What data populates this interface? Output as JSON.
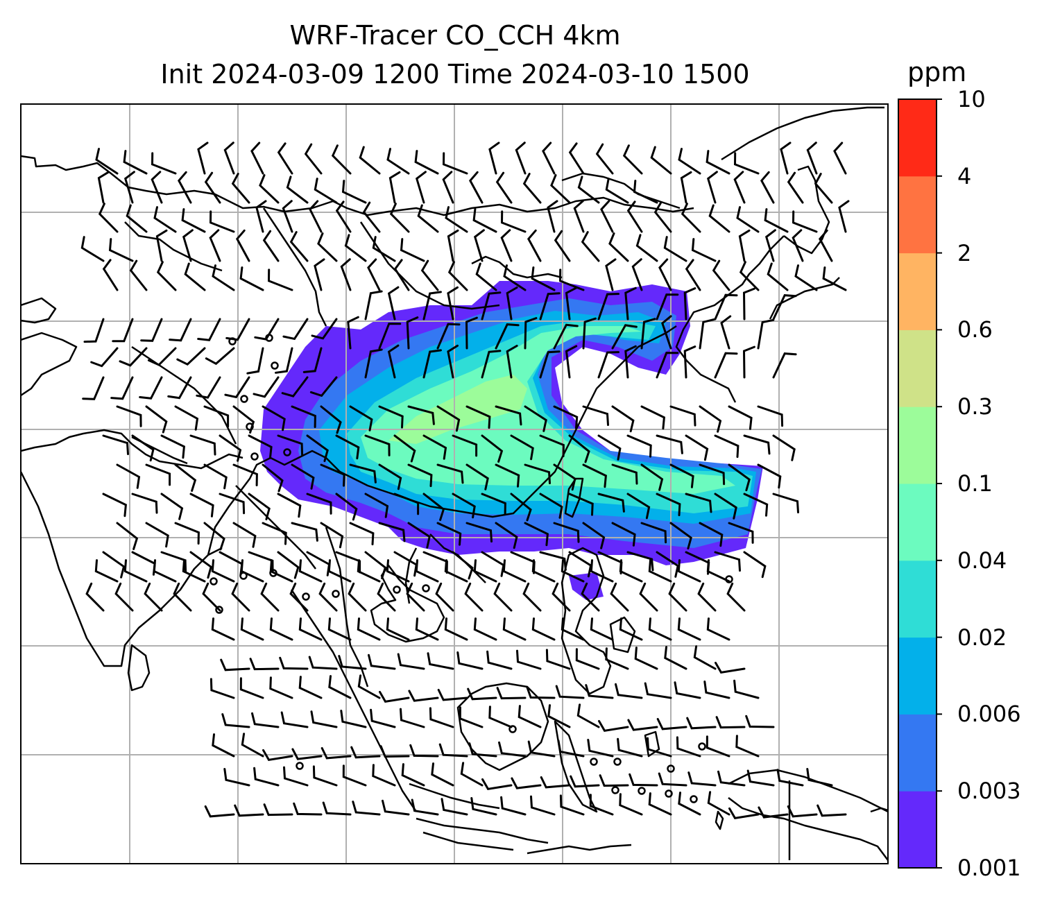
{
  "title": {
    "line1": "WRF-Tracer CO_CCH 4km",
    "line2": "Init 2024-03-09 1200 Time 2024-03-10 1500"
  },
  "colorbar": {
    "unit": "ppm",
    "ticks": [
      "0.001",
      "0.003",
      "0.006",
      "0.02",
      "0.04",
      "0.1",
      "0.3",
      "0.6",
      "2",
      "4",
      "10"
    ],
    "colors": [
      "#6429fb",
      "#3478f2",
      "#03b0ea",
      "#2fddd6",
      "#6cfbbf",
      "#9cfc9a",
      "#cfe288",
      "#ffb462",
      "#ff7341",
      "#ff2a17"
    ]
  },
  "map": {
    "layers": [
      "tracer-plume",
      "coastlines",
      "gridlines",
      "wind-barbs"
    ],
    "gridline_color": "#b0b0b0",
    "coastline_color": "#000000"
  }
}
